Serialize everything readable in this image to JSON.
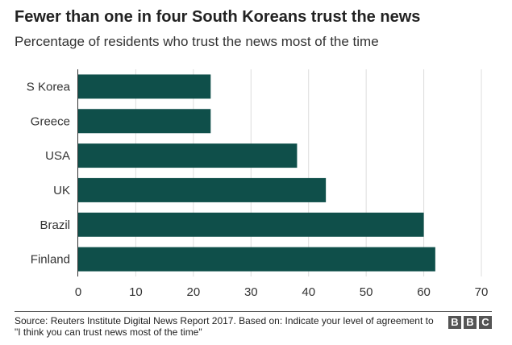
{
  "title": "Fewer than one in four South Koreans trust the news",
  "subtitle": "Percentage of residents who trust the news most of the time",
  "source": "Source: Reuters Institute Digital News Report 2017. Based on: Indicate your level of agreement to \"I think you can trust news most of the time\"",
  "logo": [
    "B",
    "B",
    "C"
  ],
  "colors": {
    "bar": "#0f4f4a",
    "grid": "#dddddd",
    "axis": "#333333"
  },
  "chart_data": {
    "type": "bar",
    "orientation": "horizontal",
    "categories": [
      "S Korea",
      "Greece",
      "USA",
      "UK",
      "Brazil",
      "Finland"
    ],
    "values": [
      23,
      23,
      38,
      43,
      60,
      62
    ],
    "xlim": [
      0,
      70
    ],
    "xticks": [
      0,
      10,
      20,
      30,
      40,
      50,
      60,
      70
    ],
    "grid": true
  }
}
